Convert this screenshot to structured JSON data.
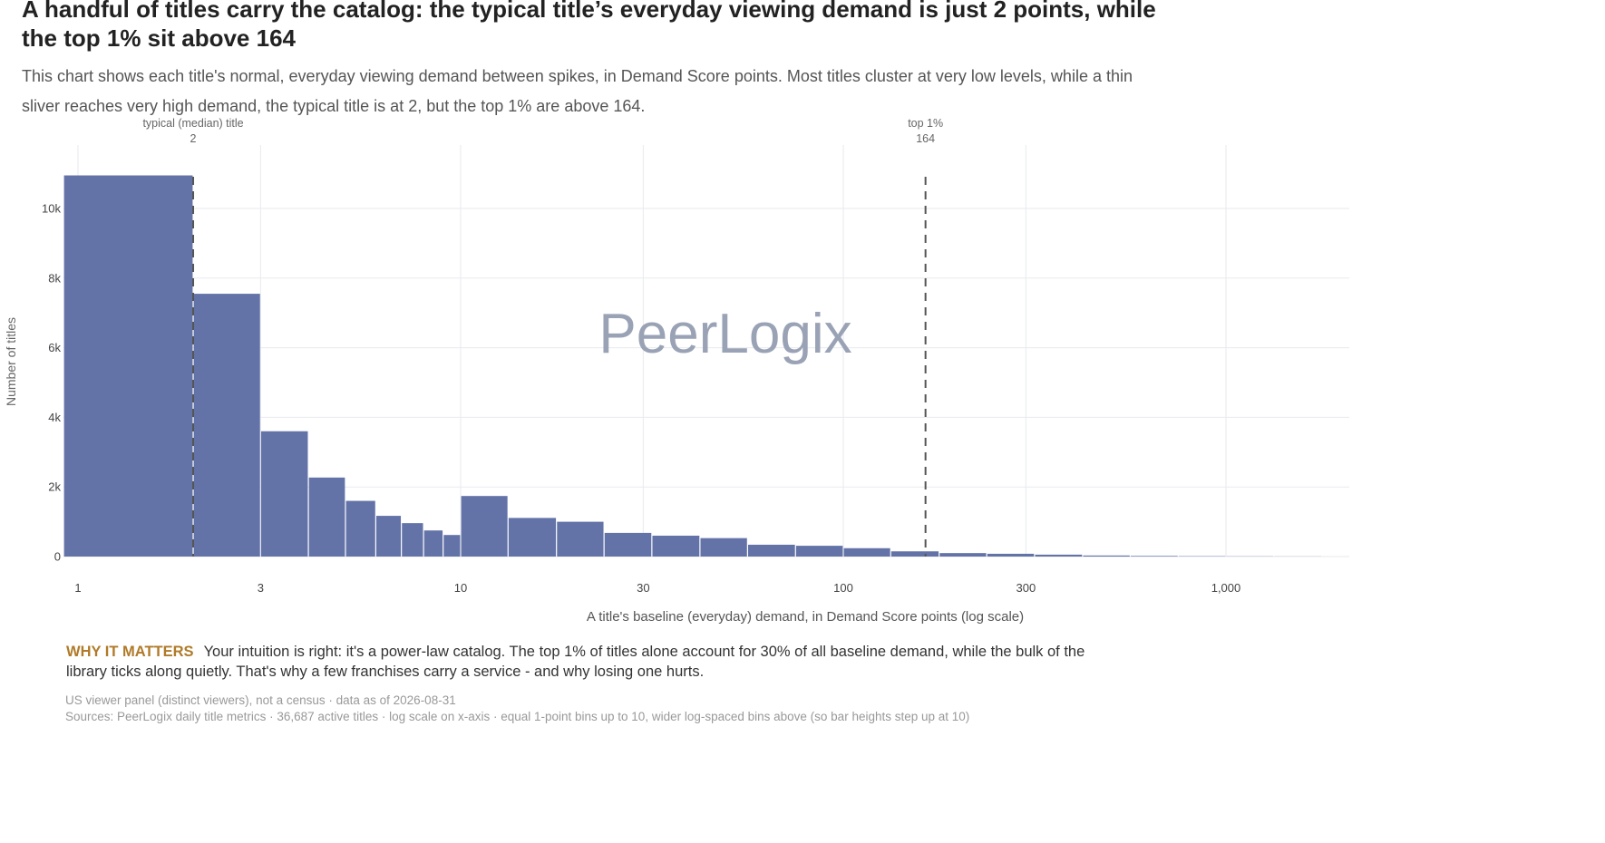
{
  "title": "A handful of titles carry the catalog: the typical title’s everyday viewing demand is just 2 points, while the top 1% sit above 164",
  "subtitle": "This chart shows each title's normal, everyday viewing demand between spikes, in Demand Score points. Most titles cluster at very low levels, while a thin sliver reaches very high demand, the typical title is at 2, but the top 1% are above 164.",
  "watermark": "PeerLogix",
  "callout": {
    "label": "WHY IT MATTERS",
    "text": "Your intuition is right: it's a power-law catalog. The top 1% of titles alone account for 30% of all baseline demand, while the bulk of the library ticks along quietly. That's why a few franchises carry a service - and why losing one hurts."
  },
  "footer": {
    "note1": "US viewer panel (distinct viewers), not a census · data as of 2026-08-31",
    "note2": "Sources: PeerLogix daily title metrics · 36,687 active titles · log scale on x-axis · equal 1-point bins up to 10, wider log-spaced bins above (so bar heights step up at 10)"
  },
  "colors": {
    "bar": "#6373a8",
    "grid": "#e8eaef",
    "reference_line": "#555555",
    "callout_label": "#b07a28",
    "watermark": "#9aa3b5"
  },
  "chart_data": {
    "type": "bar",
    "x_scale": "log",
    "xlabel": "A title's baseline (everyday) demand, in Demand Score points (log scale)",
    "ylabel": "Number of titles",
    "xlim": [
      0.9,
      2000
    ],
    "ylim": [
      0,
      11000
    ],
    "x_ticks": [
      1,
      3,
      10,
      30,
      100,
      300,
      1000
    ],
    "x_tick_labels": [
      "1",
      "3",
      "10",
      "30",
      "100",
      "300",
      "1,000"
    ],
    "y_ticks": [
      0,
      2000,
      4000,
      6000,
      8000,
      10000
    ],
    "y_tick_labels": [
      "0",
      "2k",
      "4k",
      "6k",
      "8k",
      "10k"
    ],
    "grid": true,
    "bins": [
      {
        "x0": 0.9,
        "x1": 2,
        "count": 10950
      },
      {
        "x0": 2,
        "x1": 3,
        "count": 7550
      },
      {
        "x0": 3,
        "x1": 4,
        "count": 3600
      },
      {
        "x0": 4,
        "x1": 5,
        "count": 2270
      },
      {
        "x0": 5,
        "x1": 6,
        "count": 1600
      },
      {
        "x0": 6,
        "x1": 7,
        "count": 1170
      },
      {
        "x0": 7,
        "x1": 8,
        "count": 960
      },
      {
        "x0": 8,
        "x1": 9,
        "count": 750
      },
      {
        "x0": 9,
        "x1": 10,
        "count": 620
      },
      {
        "x0": 10,
        "x1": 13.3,
        "count": 1740
      },
      {
        "x0": 13.3,
        "x1": 17.8,
        "count": 1110
      },
      {
        "x0": 17.8,
        "x1": 23.7,
        "count": 1000
      },
      {
        "x0": 23.7,
        "x1": 31.6,
        "count": 680
      },
      {
        "x0": 31.6,
        "x1": 42.2,
        "count": 600
      },
      {
        "x0": 42.2,
        "x1": 56.2,
        "count": 530
      },
      {
        "x0": 56.2,
        "x1": 75,
        "count": 340
      },
      {
        "x0": 75,
        "x1": 100,
        "count": 310
      },
      {
        "x0": 100,
        "x1": 133,
        "count": 240
      },
      {
        "x0": 133,
        "x1": 178,
        "count": 150
      },
      {
        "x0": 178,
        "x1": 237,
        "count": 100
      },
      {
        "x0": 237,
        "x1": 316,
        "count": 80
      },
      {
        "x0": 316,
        "x1": 422,
        "count": 55
      },
      {
        "x0": 422,
        "x1": 562,
        "count": 30
      },
      {
        "x0": 562,
        "x1": 750,
        "count": 18
      },
      {
        "x0": 750,
        "x1": 1000,
        "count": 10
      },
      {
        "x0": 1000,
        "x1": 1333,
        "count": 6
      },
      {
        "x0": 1333,
        "x1": 1778,
        "count": 3
      }
    ],
    "reference_lines": [
      {
        "x": 2,
        "label": "typical (median) title",
        "value_label": "2"
      },
      {
        "x": 164,
        "label": "top 1%",
        "value_label": "164"
      }
    ]
  }
}
